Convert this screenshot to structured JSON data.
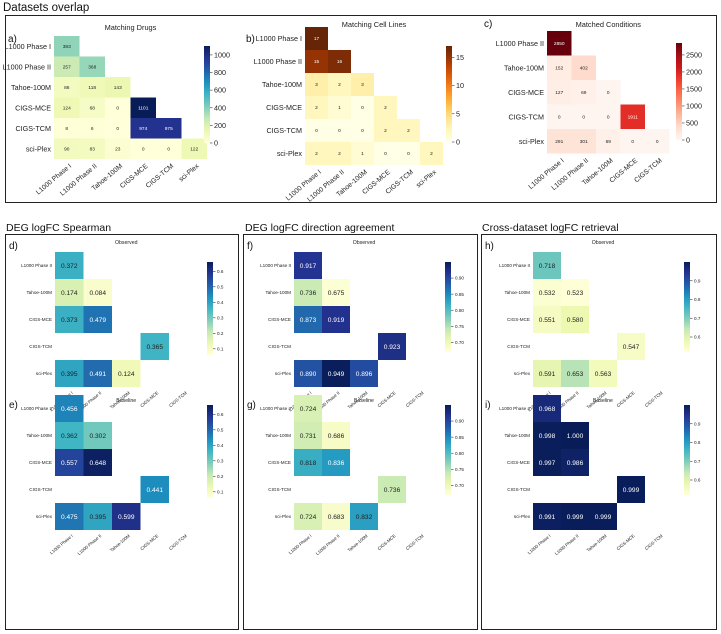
{
  "sections": {
    "overlap_title": "Datasets overlap",
    "spearman_title": "DEG logFC Spearman",
    "direction_title": "DEG logFC direction agreement",
    "retrieval_title": "Cross-dataset logFC retrieval"
  },
  "chart_data": [
    {
      "id": "a",
      "type": "heatmap",
      "panel_letter": "a)",
      "title": "Matching Drugs",
      "rows": [
        "L1000 Phase I",
        "L1000 Phase II",
        "Tahoe-100M",
        "CIGS-MCE",
        "CIGS-TCM",
        "sci-Plex"
      ],
      "cols": [
        "L1000 Phase I",
        "L1000 Phase II",
        "Tahoe-100M",
        "CIGS-MCE",
        "CIGS-TCM",
        "sci-Plex"
      ],
      "values": [
        [
          383,
          null,
          null,
          null,
          null,
          null
        ],
        [
          257,
          368,
          null,
          null,
          null,
          null
        ],
        [
          86,
          118,
          143,
          null,
          null,
          null
        ],
        [
          124,
          68,
          0,
          1101,
          null,
          null
        ],
        [
          8,
          6,
          0,
          974,
          975,
          null
        ],
        [
          90,
          83,
          23,
          0,
          0,
          122
        ]
      ],
      "labels": [
        [
          "383",
          null,
          null,
          null,
          null,
          null
        ],
        [
          "257",
          "368",
          null,
          null,
          null,
          null
        ],
        [
          "86",
          "118",
          "143",
          null,
          null,
          null
        ],
        [
          "124",
          "68",
          "0",
          "1101",
          null,
          null
        ],
        [
          "8",
          "6",
          "0",
          "974",
          "975",
          null
        ],
        [
          "90",
          "83",
          "23",
          "0",
          "0",
          "122"
        ]
      ],
      "colormap": "YlGnBu",
      "vmin": 0,
      "vmax": 1101,
      "colorbar_ticks": [
        0,
        200,
        400,
        600,
        800,
        1000
      ],
      "colorbar_tick_labels": [
        "0",
        "200",
        "400",
        "600",
        "800",
        "1000"
      ]
    },
    {
      "id": "b",
      "type": "heatmap",
      "panel_letter": "b)",
      "title": "Matching Cell Lines",
      "rows": [
        "L1000 Phase I",
        "L1000 Phase II",
        "Tahoe-100M",
        "CIGS-MCE",
        "CIGS-TCM",
        "sci-Plex"
      ],
      "cols": [
        "L1000 Phase I",
        "L1000 Phase II",
        "Tahoe-100M",
        "CIGS-MCE",
        "CIGS-TCM",
        "sci-Plex"
      ],
      "values": [
        [
          17,
          null,
          null,
          null,
          null,
          null
        ],
        [
          15,
          16,
          null,
          null,
          null,
          null
        ],
        [
          3,
          2,
          3,
          null,
          null,
          null
        ],
        [
          2,
          1,
          0,
          2,
          null,
          null
        ],
        [
          0,
          0,
          0,
          2,
          2,
          null
        ],
        [
          2,
          2,
          1,
          0,
          0,
          2
        ]
      ],
      "labels": [
        [
          "17",
          null,
          null,
          null,
          null,
          null
        ],
        [
          "15",
          "16",
          null,
          null,
          null,
          null
        ],
        [
          "3",
          "2",
          "3",
          null,
          null,
          null
        ],
        [
          "2",
          "1",
          "0",
          "2",
          null,
          null
        ],
        [
          "0",
          "0",
          "0",
          "2",
          "2",
          null
        ],
        [
          "2",
          "2",
          "1",
          "0",
          "0",
          "2"
        ]
      ],
      "colormap": "YlOrBr",
      "vmin": 0,
      "vmax": 17,
      "colorbar_ticks": [
        0,
        5,
        10,
        15
      ],
      "colorbar_tick_labels": [
        "0",
        "5",
        "10",
        "15"
      ]
    },
    {
      "id": "c",
      "type": "heatmap",
      "panel_letter": "c)",
      "title": "Matched Conditions",
      "rows": [
        "L1000 Phase II",
        "Tahoe-100M",
        "CIGS-MCE",
        "CIGS-TCM",
        "sci-Plex"
      ],
      "cols": [
        "L1000 Phase I",
        "L1000 Phase II",
        "Tahoe-100M",
        "CIGS-MCE",
        "CIGS-TCM"
      ],
      "values": [
        [
          2850,
          null,
          null,
          null,
          null
        ],
        [
          152,
          402,
          null,
          null,
          null
        ],
        [
          127,
          69,
          0,
          null,
          null
        ],
        [
          0,
          0,
          0,
          1911,
          null
        ],
        [
          291,
          301,
          69,
          0,
          0
        ]
      ],
      "labels": [
        [
          "2850",
          null,
          null,
          null,
          null
        ],
        [
          "152",
          "402",
          null,
          null,
          null
        ],
        [
          "127",
          "69",
          "0",
          null,
          null
        ],
        [
          "0",
          "0",
          "0",
          "1911",
          null
        ],
        [
          "291",
          "301",
          "69",
          "0",
          "0"
        ]
      ],
      "colormap": "Reds",
      "vmin": 0,
      "vmax": 2850,
      "colorbar_ticks": [
        0,
        500,
        1000,
        1500,
        2000,
        2500
      ],
      "colorbar_tick_labels": [
        "0",
        "500",
        "1000",
        "1500",
        "2000",
        "2500"
      ]
    },
    {
      "id": "d",
      "type": "heatmap",
      "panel_letter": "d)",
      "title": "Observed",
      "rows": [
        "L1000 Phase II",
        "Tahoe-100M",
        "CIGS-MCE",
        "CIGS-TCM",
        "sci-Plex"
      ],
      "cols": [
        "L1000 Phase I",
        "L1000 Phase II",
        "Tahoe-100M",
        "CIGS-MCE",
        "CIGS-TCM"
      ],
      "values": [
        [
          0.372,
          null,
          null,
          null,
          null
        ],
        [
          0.174,
          0.084,
          null,
          null,
          null
        ],
        [
          0.373,
          0.479,
          null,
          null,
          null
        ],
        [
          null,
          null,
          null,
          0.365,
          null
        ],
        [
          0.395,
          0.491,
          0.124,
          null,
          null
        ]
      ],
      "labels": [
        [
          "0.372",
          null,
          null,
          null,
          null
        ],
        [
          "0.174",
          "0.084",
          null,
          null,
          null
        ],
        [
          "0.373",
          "0.479",
          null,
          null,
          null
        ],
        [
          null,
          null,
          null,
          "0.365",
          null
        ],
        [
          "0.395",
          "0.491",
          "0.124",
          null,
          null
        ]
      ],
      "colormap": "YlGnBu",
      "vmin": 0.06,
      "vmax": 0.66,
      "colorbar_ticks": [
        0.1,
        0.2,
        0.3,
        0.4,
        0.5,
        0.6
      ],
      "colorbar_tick_labels": [
        "0.1",
        "0.2",
        "0.3",
        "0.4",
        "0.5",
        "0.6"
      ]
    },
    {
      "id": "e",
      "type": "heatmap",
      "panel_letter": "e)",
      "title": "Baseline",
      "rows": [
        "L1000 Phase II",
        "Tahoe-100M",
        "CIGS-MCE",
        "CIGS-TCM",
        "sci-Plex"
      ],
      "cols": [
        "L1000 Phase I",
        "L1000 Phase II",
        "Tahoe-100M",
        "CIGS-MCE",
        "CIGS-TCM"
      ],
      "values": [
        [
          0.456,
          null,
          null,
          null,
          null
        ],
        [
          0.362,
          0.302,
          null,
          null,
          null
        ],
        [
          0.557,
          0.648,
          null,
          null,
          null
        ],
        [
          null,
          null,
          null,
          0.441,
          null
        ],
        [
          0.475,
          0.395,
          0.599,
          null,
          null
        ]
      ],
      "labels": [
        [
          "0.456",
          null,
          null,
          null,
          null
        ],
        [
          "0.362",
          "0.302",
          null,
          null,
          null
        ],
        [
          "0.557",
          "0.648",
          null,
          null,
          null
        ],
        [
          null,
          null,
          null,
          "0.441",
          null
        ],
        [
          "0.475",
          "0.395",
          "0.599",
          null,
          null
        ]
      ],
      "colormap": "YlGnBu",
      "vmin": 0.06,
      "vmax": 0.66,
      "colorbar_ticks": [
        0.1,
        0.2,
        0.3,
        0.4,
        0.5,
        0.6
      ],
      "colorbar_tick_labels": [
        "0.1",
        "0.2",
        "0.3",
        "0.4",
        "0.5",
        "0.6"
      ]
    },
    {
      "id": "f",
      "type": "heatmap",
      "panel_letter": "f)",
      "title": "Observed",
      "rows": [
        "L1000 Phase II",
        "Tahoe-100M",
        "CIGS-MCE",
        "CIGS-TCM",
        "sci-Plex"
      ],
      "cols": [
        "L1000 Phase I",
        "L1000 Phase II",
        "Tahoe-100M",
        "CIGS-MCE",
        "CIGS-TCM"
      ],
      "values": [
        [
          0.917,
          null,
          null,
          null,
          null
        ],
        [
          0.736,
          0.675,
          null,
          null,
          null
        ],
        [
          0.873,
          0.919,
          null,
          null,
          null
        ],
        [
          null,
          null,
          null,
          0.923,
          null
        ],
        [
          0.89,
          0.949,
          0.896,
          null,
          null
        ]
      ],
      "labels": [
        [
          "0.917",
          null,
          null,
          null,
          null
        ],
        [
          "0.736",
          "0.675",
          null,
          null,
          null
        ],
        [
          "0.873",
          "0.919",
          null,
          null,
          null
        ],
        [
          null,
          null,
          null,
          "0.923",
          null
        ],
        [
          "0.890",
          "0.949",
          "0.896",
          null,
          null
        ]
      ],
      "colormap": "YlGnBu",
      "vmin": 0.67,
      "vmax": 0.95,
      "colorbar_ticks": [
        0.7,
        0.75,
        0.8,
        0.85,
        0.9
      ],
      "colorbar_tick_labels": [
        "0.70",
        "0.75",
        "0.80",
        "0.85",
        "0.90"
      ]
    },
    {
      "id": "g",
      "type": "heatmap",
      "panel_letter": "g)",
      "title": "Baseline",
      "rows": [
        "L1000 Phase II",
        "Tahoe-100M",
        "CIGS-MCE",
        "CIGS-TCM",
        "sci-Plex"
      ],
      "cols": [
        "L1000 Phase I",
        "L1000 Phase II",
        "Tahoe-100M",
        "CIGS-MCE",
        "CIGS-TCM"
      ],
      "values": [
        [
          0.724,
          null,
          null,
          null,
          null
        ],
        [
          0.731,
          0.686,
          null,
          null,
          null
        ],
        [
          0.818,
          0.836,
          null,
          null,
          null
        ],
        [
          null,
          null,
          null,
          0.736,
          null
        ],
        [
          0.724,
          0.683,
          0.832,
          null,
          null
        ]
      ],
      "labels": [
        [
          "0.724",
          null,
          null,
          null,
          null
        ],
        [
          "0.731",
          "0.686",
          null,
          null,
          null
        ],
        [
          "0.818",
          "0.836",
          null,
          null,
          null
        ],
        [
          null,
          null,
          null,
          "0.736",
          null
        ],
        [
          "0.724",
          "0.683",
          "0.832",
          null,
          null
        ]
      ],
      "colormap": "YlGnBu",
      "vmin": 0.67,
      "vmax": 0.95,
      "colorbar_ticks": [
        0.7,
        0.75,
        0.8,
        0.85,
        0.9
      ],
      "colorbar_tick_labels": [
        "0.70",
        "0.75",
        "0.80",
        "0.85",
        "0.90"
      ]
    },
    {
      "id": "h",
      "type": "heatmap",
      "panel_letter": "h)",
      "title": "Observed",
      "rows": [
        "L1000 Phase II",
        "Tahoe-100M",
        "CIGS-MCE",
        "CIGS-TCM",
        "sci-Plex"
      ],
      "cols": [
        "L1000 Phase I",
        "L1000 Phase II",
        "Tahoe-100M",
        "CIGS-MCE",
        "CIGS-TCM"
      ],
      "values": [
        [
          0.718,
          null,
          null,
          null,
          null
        ],
        [
          0.532,
          0.523,
          null,
          null,
          null
        ],
        [
          0.551,
          0.58,
          null,
          null,
          null
        ],
        [
          null,
          null,
          null,
          0.547,
          null
        ],
        [
          0.591,
          0.653,
          0.563,
          null,
          null
        ]
      ],
      "labels": [
        [
          "0.718",
          null,
          null,
          null,
          null
        ],
        [
          "0.532",
          "0.523",
          null,
          null,
          null
        ],
        [
          "0.551",
          "0.580",
          null,
          null,
          null
        ],
        [
          null,
          null,
          null,
          "0.547",
          null
        ],
        [
          "0.591",
          "0.653",
          "0.563",
          null,
          null
        ]
      ],
      "colormap": "YlGnBu",
      "vmin": 0.52,
      "vmax": 1.0,
      "colorbar_ticks": [
        0.6,
        0.7,
        0.8,
        0.9
      ],
      "colorbar_tick_labels": [
        "0.6",
        "0.7",
        "0.8",
        "0.9"
      ]
    },
    {
      "id": "i",
      "type": "heatmap",
      "panel_letter": "i)",
      "title": "Baseline",
      "rows": [
        "L1000 Phase II",
        "Tahoe-100M",
        "CIGS-MCE",
        "CIGS-TCM",
        "sci-Plex"
      ],
      "cols": [
        "L1000 Phase I",
        "L1000 Phase II",
        "Tahoe-100M",
        "CIGS-MCE",
        "CIGS-TCM"
      ],
      "values": [
        [
          0.968,
          null,
          null,
          null,
          null
        ],
        [
          0.998,
          1.0,
          null,
          null,
          null
        ],
        [
          0.997,
          0.986,
          null,
          null,
          null
        ],
        [
          null,
          null,
          null,
          0.999,
          null
        ],
        [
          0.991,
          0.999,
          0.999,
          null,
          null
        ]
      ],
      "labels": [
        [
          "0.968",
          null,
          null,
          null,
          null
        ],
        [
          "0.998",
          "1.000",
          null,
          null,
          null
        ],
        [
          "0.997",
          "0.986",
          null,
          null,
          null
        ],
        [
          null,
          null,
          null,
          "0.999",
          null
        ],
        [
          "0.991",
          "0.999",
          "0.999",
          null,
          null
        ]
      ],
      "colormap": "YlGnBu",
      "vmin": 0.52,
      "vmax": 1.0,
      "colorbar_ticks": [
        0.6,
        0.7,
        0.8,
        0.9
      ],
      "colorbar_tick_labels": [
        "0.6",
        "0.7",
        "0.8",
        "0.9"
      ]
    }
  ]
}
